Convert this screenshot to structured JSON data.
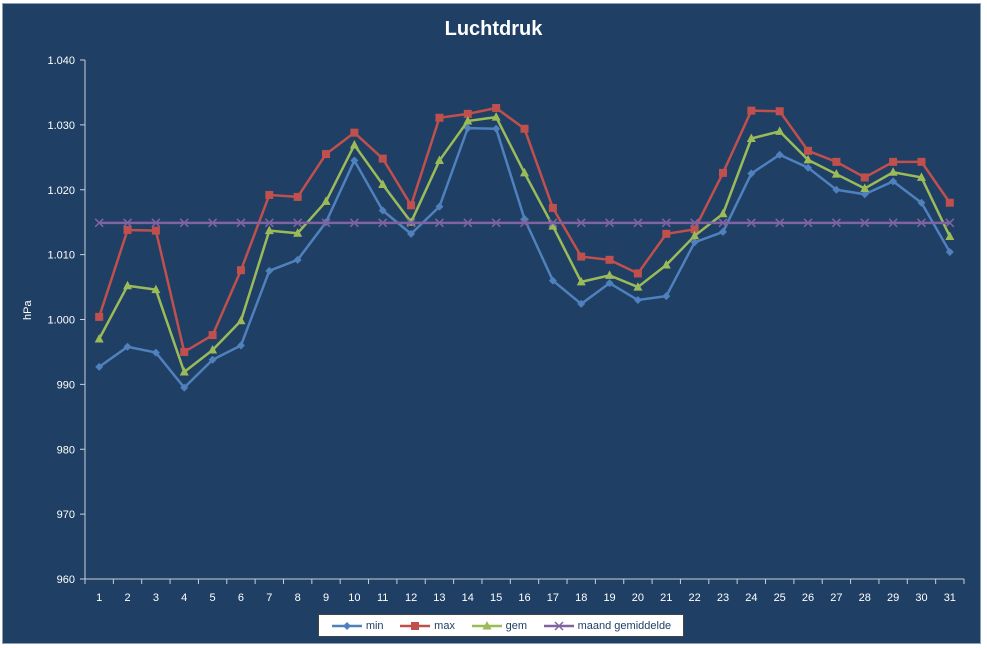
{
  "chart_data": {
    "type": "line",
    "title": "Luchtdruk",
    "xlabel": "",
    "ylabel": "hPa",
    "categories": [
      "1",
      "2",
      "3",
      "4",
      "5",
      "6",
      "7",
      "8",
      "9",
      "10",
      "11",
      "12",
      "13",
      "14",
      "15",
      "16",
      "17",
      "18",
      "19",
      "20",
      "21",
      "22",
      "23",
      "24",
      "25",
      "26",
      "27",
      "28",
      "29",
      "30",
      "31"
    ],
    "ylim": [
      960,
      1040
    ],
    "yticks": [
      960,
      970,
      980,
      990,
      1000,
      1010,
      1020,
      1030,
      1040
    ],
    "ytick_labels": [
      "960",
      "970",
      "980",
      "990",
      "1.000",
      "1.010",
      "1.020",
      "1.030",
      "1.040"
    ],
    "grid": false,
    "legend_position": "bottom",
    "series": [
      {
        "name": "min",
        "color": "#4f81bd",
        "marker": "diamond",
        "values": [
          992.7,
          995.8,
          994.9,
          989.5,
          993.8,
          996.0,
          1007.5,
          1009.2,
          1015.0,
          1024.5,
          1016.8,
          1013.2,
          1017.4,
          1029.5,
          1029.4,
          1015.5,
          1006.0,
          1002.4,
          1005.6,
          1003.0,
          1003.6,
          1011.9,
          1013.5,
          1022.5,
          1025.4,
          1023.4,
          1020.0,
          1019.3,
          1021.3,
          1018.0,
          1010.4
        ]
      },
      {
        "name": "max",
        "color": "#c0504d",
        "marker": "square",
        "values": [
          1000.4,
          1013.8,
          1013.7,
          995.0,
          997.6,
          1007.6,
          1019.2,
          1018.9,
          1025.5,
          1028.8,
          1024.8,
          1017.6,
          1031.1,
          1031.7,
          1032.6,
          1029.4,
          1017.2,
          1009.7,
          1009.2,
          1007.1,
          1013.2,
          1013.9,
          1022.6,
          1032.2,
          1032.1,
          1026.0,
          1024.3,
          1021.9,
          1024.3,
          1024.3,
          1018.0
        ]
      },
      {
        "name": "gem",
        "color": "#9bbb59",
        "marker": "triangle",
        "values": [
          997.0,
          1005.2,
          1004.6,
          991.9,
          995.3,
          999.8,
          1013.7,
          1013.3,
          1018.2,
          1026.9,
          1020.8,
          1015.0,
          1024.5,
          1030.6,
          1031.2,
          1022.6,
          1014.4,
          1005.8,
          1006.8,
          1005.0,
          1008.4,
          1012.9,
          1016.3,
          1027.9,
          1029.0,
          1024.6,
          1022.4,
          1020.2,
          1022.7,
          1021.9,
          1012.8
        ]
      },
      {
        "name": "maand gemiddelde",
        "color": "#8064a2",
        "marker": "x",
        "values": [
          1014.9,
          1014.9,
          1014.9,
          1014.9,
          1014.9,
          1014.9,
          1014.9,
          1014.9,
          1014.9,
          1014.9,
          1014.9,
          1014.9,
          1014.9,
          1014.9,
          1014.9,
          1014.9,
          1014.9,
          1014.9,
          1014.9,
          1014.9,
          1014.9,
          1014.9,
          1014.9,
          1014.9,
          1014.9,
          1014.9,
          1014.9,
          1014.9,
          1014.9,
          1014.9,
          1014.9
        ]
      }
    ]
  }
}
